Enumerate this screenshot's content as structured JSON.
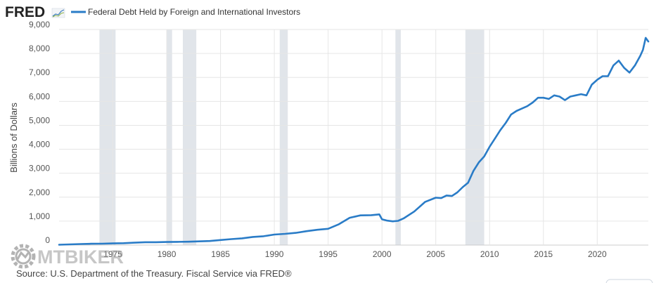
{
  "header": {
    "logo_text": "FRED",
    "legend_label": "Federal Debt Held by Foreign and International Investors"
  },
  "footer": {
    "source": "Source: U.S. Department of the Treasury. Fiscal Service via FRED®"
  },
  "watermark": {
    "text": "MTBIKER"
  },
  "colors": {
    "series": "#2a7cc7",
    "recession": "#e1e5ea",
    "grid": "#e6e6e6",
    "axis": "#cccccc"
  },
  "chart_data": {
    "type": "line",
    "title": "Federal Debt Held by Foreign and International Investors",
    "ylabel": "Billions of Dollars",
    "xlabel": "",
    "xlim": [
      1970,
      2024.75
    ],
    "ylim": [
      0,
      9000
    ],
    "grid": true,
    "yticks": [
      0,
      1000,
      2000,
      3000,
      4000,
      5000,
      6000,
      7000,
      8000,
      9000
    ],
    "ytick_labels": [
      "0",
      "1,000",
      "2,000",
      "3,000",
      "4,000",
      "5,000",
      "6,000",
      "7,000",
      "8,000",
      "9,000"
    ],
    "xticks": [
      1975,
      1980,
      1985,
      1990,
      1995,
      2000,
      2005,
      2010,
      2015,
      2020
    ],
    "xtick_labels": [
      "1975",
      "1980",
      "1985",
      "1990",
      "1995",
      "2000",
      "2005",
      "2010",
      "2015",
      "2020"
    ],
    "recessions": [
      [
        1973.75,
        1975.25
      ],
      [
        1980.0,
        1980.5
      ],
      [
        1981.5,
        1982.75
      ],
      [
        1990.5,
        1991.25
      ],
      [
        2001.25,
        2001.75
      ],
      [
        2007.75,
        2009.5
      ]
    ],
    "series": [
      {
        "name": "Federal Debt Held by Foreign and International Investors",
        "x": [
          1970.0,
          1971.0,
          1972.0,
          1973.0,
          1974.0,
          1975.0,
          1976.0,
          1977.0,
          1978.0,
          1979.0,
          1980.0,
          1981.0,
          1982.0,
          1983.0,
          1984.0,
          1985.0,
          1986.0,
          1987.0,
          1988.0,
          1989.0,
          1990.0,
          1991.0,
          1992.0,
          1993.0,
          1994.0,
          1995.0,
          1996.0,
          1997.0,
          1998.0,
          1999.0,
          1999.75,
          2000.0,
          2000.5,
          2001.0,
          2001.5,
          2002.0,
          2003.0,
          2004.0,
          2005.0,
          2005.5,
          2006.0,
          2006.5,
          2007.0,
          2007.5,
          2008.0,
          2008.5,
          2009.0,
          2009.5,
          2010.0,
          2010.5,
          2011.0,
          2011.5,
          2012.0,
          2012.5,
          2013.0,
          2013.5,
          2014.0,
          2014.5,
          2015.0,
          2015.5,
          2016.0,
          2016.5,
          2017.0,
          2017.5,
          2018.0,
          2018.5,
          2019.0,
          2019.5,
          2020.0,
          2020.5,
          2021.0,
          2021.5,
          2022.0,
          2022.5,
          2023.0,
          2023.5,
          2024.0,
          2024.25,
          2024.5,
          2024.75
        ],
        "values": [
          15,
          30,
          45,
          55,
          60,
          70,
          80,
          100,
          120,
          120,
          130,
          135,
          140,
          155,
          170,
          210,
          250,
          280,
          340,
          370,
          440,
          470,
          510,
          580,
          640,
          680,
          870,
          1140,
          1240,
          1250,
          1280,
          1080,
          1020,
          990,
          1010,
          1110,
          1400,
          1800,
          1980,
          1960,
          2070,
          2050,
          2200,
          2420,
          2600,
          3100,
          3450,
          3700,
          4100,
          4450,
          4800,
          5100,
          5450,
          5600,
          5700,
          5800,
          5950,
          6150,
          6150,
          6100,
          6250,
          6200,
          6050,
          6200,
          6250,
          6300,
          6250,
          6700,
          6900,
          7050,
          7050,
          7500,
          7700,
          7400,
          7200,
          7500,
          7900,
          8150,
          8650,
          8500
        ]
      }
    ]
  }
}
